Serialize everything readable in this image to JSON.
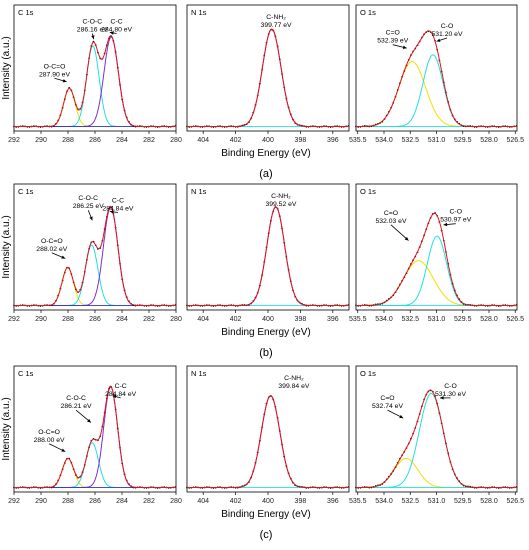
{
  "chart_data": [
    {
      "type": "line",
      "row_label": "(a)",
      "ylabel": "Intensity (a.u.)",
      "xlabel": "Binding Energy (eV)",
      "panels": [
        {
          "panel_title": "C 1s",
          "xlim": [
            292,
            280
          ],
          "x_ticks": [
            "292",
            "290",
            "288",
            "286",
            "284",
            "282",
            "280"
          ],
          "components": [
            {
              "peak": "O-C=O",
              "be": "287.90 eV",
              "center": 287.9,
              "amp": 0.34,
              "fwhm": 1.0,
              "color": "#f0e000"
            },
            {
              "peak": "C-O-C",
              "be": "286.16 eV",
              "center": 286.16,
              "amp": 0.72,
              "fwhm": 1.1,
              "color": "#22e0e0"
            },
            {
              "peak": "C-C",
              "be": "284.80 eV",
              "center": 284.8,
              "amp": 0.8,
              "fwhm": 1.25,
              "color": "#7a30d0"
            }
          ],
          "labels": [
            {
              "text": "C-C",
              "sub": "284.80 eV",
              "x": 284.4,
              "y": 0.96,
              "ax": 284.9,
              "ay": 0.88
            },
            {
              "text": "C-O-C",
              "sub": "286.16 eV",
              "x": 286.2,
              "y": 0.96,
              "ax": 286.1,
              "ay": 0.82
            },
            {
              "text": "O-C=O",
              "sub": "287.90 eV",
              "x": 289.0,
              "y": 0.56,
              "ax": 288.1,
              "ay": 0.44
            }
          ]
        },
        {
          "panel_title": "N 1s",
          "xlim": [
            405,
            395
          ],
          "x_ticks": [
            "404",
            "402",
            "400",
            "398",
            "396"
          ],
          "components": [
            {
              "peak": "C-NH₂",
              "be": "399.77 eV",
              "center": 399.77,
              "amp": 0.87,
              "fwhm": 1.35,
              "color": "#7a30d0"
            }
          ],
          "labels": [
            {
              "text": "C-NH₂",
              "sub": "399.77 eV",
              "x": 399.5,
              "y": 1.0
            }
          ]
        },
        {
          "panel_title": "O 1s",
          "xlim": [
            535.6,
            526.4
          ],
          "x_ticks": [
            "535.5",
            "534.0",
            "532.5",
            "531.0",
            "529.5",
            "528.0",
            "526.5"
          ],
          "components": [
            {
              "peak": "C=O",
              "be": "532.39 eV",
              "center": 532.39,
              "amp": 0.58,
              "fwhm": 1.8,
              "color": "#f0e000"
            },
            {
              "peak": "C-O",
              "be": "531.20 eV",
              "center": 531.2,
              "amp": 0.64,
              "fwhm": 1.35,
              "color": "#22e0e0"
            }
          ],
          "labels": [
            {
              "text": "C=O",
              "sub": "532.39 eV",
              "x": 533.5,
              "y": 0.86,
              "ax": 532.7,
              "ay": 0.74
            },
            {
              "text": "C-O",
              "sub": "531.20 eV",
              "x": 530.4,
              "y": 0.92,
              "ax": 531.0,
              "ay": 0.8
            }
          ]
        }
      ]
    },
    {
      "type": "line",
      "row_label": "(b)",
      "ylabel": "Intensity (a.u.)",
      "xlabel": "Binding Energy (eV)",
      "panels": [
        {
          "panel_title": "C 1s",
          "xlim": [
            292,
            280
          ],
          "x_ticks": [
            "292",
            "290",
            "288",
            "286",
            "284",
            "282",
            "280"
          ],
          "components": [
            {
              "peak": "O-C=O",
              "be": "288.02 eV",
              "center": 288.02,
              "amp": 0.34,
              "fwhm": 1.0,
              "color": "#f0e000"
            },
            {
              "peak": "C-O-C",
              "be": "286.25 eV",
              "center": 286.25,
              "amp": 0.54,
              "fwhm": 1.1,
              "color": "#22e0e0"
            },
            {
              "peak": "C-C",
              "be": "284.84 eV",
              "center": 284.84,
              "amp": 0.88,
              "fwhm": 1.25,
              "color": "#7a30d0"
            }
          ],
          "labels": [
            {
              "text": "C-C",
              "sub": "284.84 eV",
              "x": 284.3,
              "y": 0.96,
              "ax": 284.9,
              "ay": 0.88
            },
            {
              "text": "C-O-C",
              "sub": "286.25 eV",
              "x": 286.5,
              "y": 0.98,
              "ax": 286.2,
              "ay": 0.8
            },
            {
              "text": "O-C=O",
              "sub": "288.02 eV",
              "x": 289.2,
              "y": 0.6,
              "ax": 288.2,
              "ay": 0.46
            }
          ]
        },
        {
          "panel_title": "N 1s",
          "xlim": [
            405,
            395
          ],
          "x_ticks": [
            "404",
            "402",
            "400",
            "398",
            "396"
          ],
          "components": [
            {
              "peak": "C-NH₂",
              "be": "399.52 eV",
              "center": 399.52,
              "amp": 0.88,
              "fwhm": 1.3,
              "color": "#7a30d0"
            }
          ],
          "labels": [
            {
              "text": "C-NH₂",
              "sub": "399.52 eV",
              "x": 399.2,
              "y": 1.0
            }
          ]
        },
        {
          "panel_title": "O 1s",
          "xlim": [
            535.6,
            526.4
          ],
          "x_ticks": [
            "535.5",
            "534.0",
            "532.5",
            "531.0",
            "529.5",
            "528.0",
            "526.5"
          ],
          "components": [
            {
              "peak": "C=O",
              "be": "532.03 eV",
              "center": 532.03,
              "amp": 0.4,
              "fwhm": 2.0,
              "color": "#f0e000"
            },
            {
              "peak": "C-O",
              "be": "530.97 eV",
              "center": 530.97,
              "amp": 0.62,
              "fwhm": 1.3,
              "color": "#22e0e0"
            }
          ],
          "labels": [
            {
              "text": "C=O",
              "sub": "532.03 eV",
              "x": 533.6,
              "y": 0.85,
              "ax": 532.6,
              "ay": 0.62
            },
            {
              "text": "C-O",
              "sub": "530.97 eV",
              "x": 529.9,
              "y": 0.86,
              "ax": 530.6,
              "ay": 0.76
            }
          ]
        }
      ]
    },
    {
      "type": "line",
      "row_label": "(c)",
      "ylabel": "Intensity (a.u.)",
      "xlabel": "Binding Energy (eV)",
      "panels": [
        {
          "panel_title": "C 1s",
          "xlim": [
            292,
            280
          ],
          "x_ticks": [
            "292",
            "290",
            "288",
            "286",
            "284",
            "282",
            "280"
          ],
          "components": [
            {
              "peak": "O-C=O",
              "be": "288.00 eV",
              "center": 288.0,
              "amp": 0.26,
              "fwhm": 1.0,
              "color": "#f0e000"
            },
            {
              "peak": "C-O-C",
              "be": "286.21 eV",
              "center": 286.21,
              "amp": 0.4,
              "fwhm": 1.1,
              "color": "#22e0e0"
            },
            {
              "peak": "C-C",
              "be": "284.84 eV",
              "center": 284.84,
              "amp": 0.9,
              "fwhm": 1.2,
              "color": "#7a30d0"
            }
          ],
          "labels": [
            {
              "text": "C-C",
              "sub": "284.84 eV",
              "x": 284.1,
              "y": 0.93,
              "ax": 284.7,
              "ay": 0.86
            },
            {
              "text": "C-O-C",
              "sub": "286.21 eV",
              "x": 287.4,
              "y": 0.82,
              "ax": 286.3,
              "ay": 0.62
            },
            {
              "text": "O-C=O",
              "sub": "288.00 eV",
              "x": 289.4,
              "y": 0.52,
              "ax": 288.2,
              "ay": 0.36
            }
          ]
        },
        {
          "panel_title": "N 1s",
          "xlim": [
            405,
            395
          ],
          "x_ticks": [
            "404",
            "402",
            "400",
            "398",
            "396"
          ],
          "components": [
            {
              "peak": "C-NH₂",
              "be": "399.84 eV",
              "center": 399.84,
              "amp": 0.82,
              "fwhm": 1.35,
              "color": "#7a30d0"
            }
          ],
          "labels": [
            {
              "text": "C-NH₂",
              "sub": "399.84 eV",
              "x": 398.4,
              "y": 1.0
            }
          ]
        },
        {
          "panel_title": "O 1s",
          "xlim": [
            535.6,
            526.4
          ],
          "x_ticks": [
            "535.5",
            "534.0",
            "532.5",
            "531.0",
            "529.5",
            "528.0",
            "526.5"
          ],
          "components": [
            {
              "peak": "C=O",
              "be": "532.74 eV",
              "center": 532.74,
              "amp": 0.26,
              "fwhm": 1.6,
              "color": "#f0e000"
            },
            {
              "peak": "C-O",
              "be": "531.30 eV",
              "center": 531.3,
              "amp": 0.84,
              "fwhm": 1.6,
              "color": "#22e0e0"
            }
          ],
          "labels": [
            {
              "text": "C=O",
              "sub": "532.74 eV",
              "x": 533.8,
              "y": 0.82,
              "ax": 532.9,
              "ay": 0.66
            },
            {
              "text": "C-O",
              "sub": "531.30 eV",
              "x": 530.2,
              "y": 0.93,
              "ax": 530.8,
              "ay": 0.84
            }
          ]
        }
      ]
    }
  ]
}
